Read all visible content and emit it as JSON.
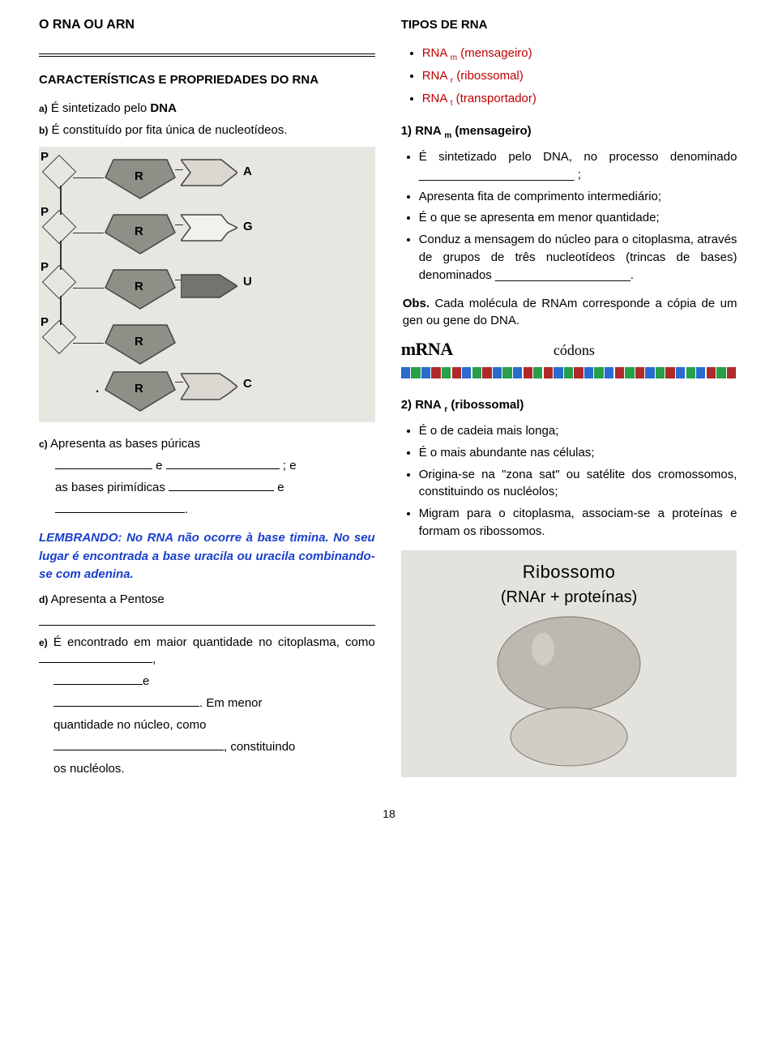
{
  "left": {
    "title": "O RNA OU ARN",
    "section": "CARACTERÍSTICAS E PROPRIEDADES DO RNA",
    "item_a_letter": "a)",
    "item_a": "É sintetizado pelo ",
    "item_a_bold": "DNA",
    "item_b_letter": "b)",
    "item_b": "É constituído por fita única de nucleotídeos.",
    "nucleotide": {
      "rows": [
        "A",
        "G",
        "U",
        "",
        "C"
      ],
      "p_label": "P",
      "r_label": "R",
      "bg": "#e8e6e0",
      "sugar_fill": "#8f8f87",
      "p_border": "#444444",
      "base_A_fill": "#d9d7d0",
      "base_G_fill": "#f2f1ec",
      "base_U_fill": "#74736d",
      "base_C_fill": "#d9d7d0"
    },
    "item_c_letter": "c)",
    "item_c_pre": "Apresenta as bases púricas",
    "item_c_line2_e": " e ",
    "item_c_line2_end": " ; e",
    "item_c_line3_pre": "as bases pirimídicas ",
    "item_c_line3_end": " e",
    "lembrando": "LEMBRANDO: No RNA não ocorre à base timina. No seu lugar é encontrada a base uracila ou uracila combinando-se com adenina.",
    "item_d_letter": "d)",
    "item_d": "Apresenta a Pentose",
    "item_e_letter": "e)",
    "item_e_1": "É encontrado em maior quantidade no citoplasma, como ",
    "item_e_comma": ",",
    "item_e_e": "e",
    "item_e_2a": ". Em menor",
    "item_e_2b": "quantidade no núcleo, como",
    "item_e_3": ", constituindo",
    "item_e_4": "os nucléolos."
  },
  "right": {
    "tipos": "TIPOS DE RNA",
    "types": [
      {
        "pre": "RNA ",
        "sub": "m",
        "post": " (mensageiro)"
      },
      {
        "pre": "RNA ",
        "sub": "r",
        "post": " (ribossomal)"
      },
      {
        "pre": "RNA ",
        "sub": "t",
        "post": " (transportador)"
      }
    ],
    "h1_pre": "1) RNA ",
    "h1_sub": "m",
    "h1_post": " (mensageiro)",
    "m_bullets": [
      "É sintetizado pelo DNA, no processo denominado _______________________ ;",
      "Apresenta fita de comprimento intermediário;",
      "É o que se apresenta em menor quantidade;",
      "Conduz a mensagem do núcleo para o citoplasma, através de grupos de três nucleotídeos (trincas de bases) denominados ____________________."
    ],
    "obs_bold": "Obs.",
    "obs": " Cada molécula de RNAm corresponde a cópia de um gen ou gene do DNA.",
    "mrna_label": "mRNA",
    "codons": "códons",
    "mrna_colors": [
      "#2a6bd0",
      "#26a04a",
      "#2a6bd0",
      "#b02a2a",
      "#26a04a",
      "#b02a2a",
      "#2a6bd0",
      "#26a04a",
      "#b02a2a",
      "#2a6bd0",
      "#26a04a",
      "#2a6bd0",
      "#b02a2a",
      "#26a04a",
      "#b02a2a",
      "#2a6bd0",
      "#26a04a",
      "#b02a2a",
      "#2a6bd0",
      "#26a04a",
      "#2a6bd0",
      "#b02a2a",
      "#26a04a",
      "#b02a2a",
      "#2a6bd0",
      "#26a04a",
      "#b02a2a",
      "#2a6bd0",
      "#26a04a",
      "#2a6bd0",
      "#b02a2a",
      "#26a04a",
      "#b02a2a"
    ],
    "h2_pre": "2) RNA ",
    "h2_sub": "r",
    "h2_post": " (ribossomal)",
    "r_bullets": [
      "É o de cadeia mais longa;",
      "É o mais abundante nas células;",
      "Origina-se na \"zona sat\" ou satélite dos cromossomos, constituindo os nucléolos;",
      "Migram para o citoplasma, associam-se a proteínas e formam os ribossomos."
    ],
    "ribo_title": "Ribossomo",
    "ribo_sub": "(RNAr + proteínas)",
    "ribo_bg": "#e4e2dc",
    "ribo_fill_top": "#bcb9b0",
    "ribo_fill_bottom": "#cfcdc6"
  },
  "pagenum": "18"
}
